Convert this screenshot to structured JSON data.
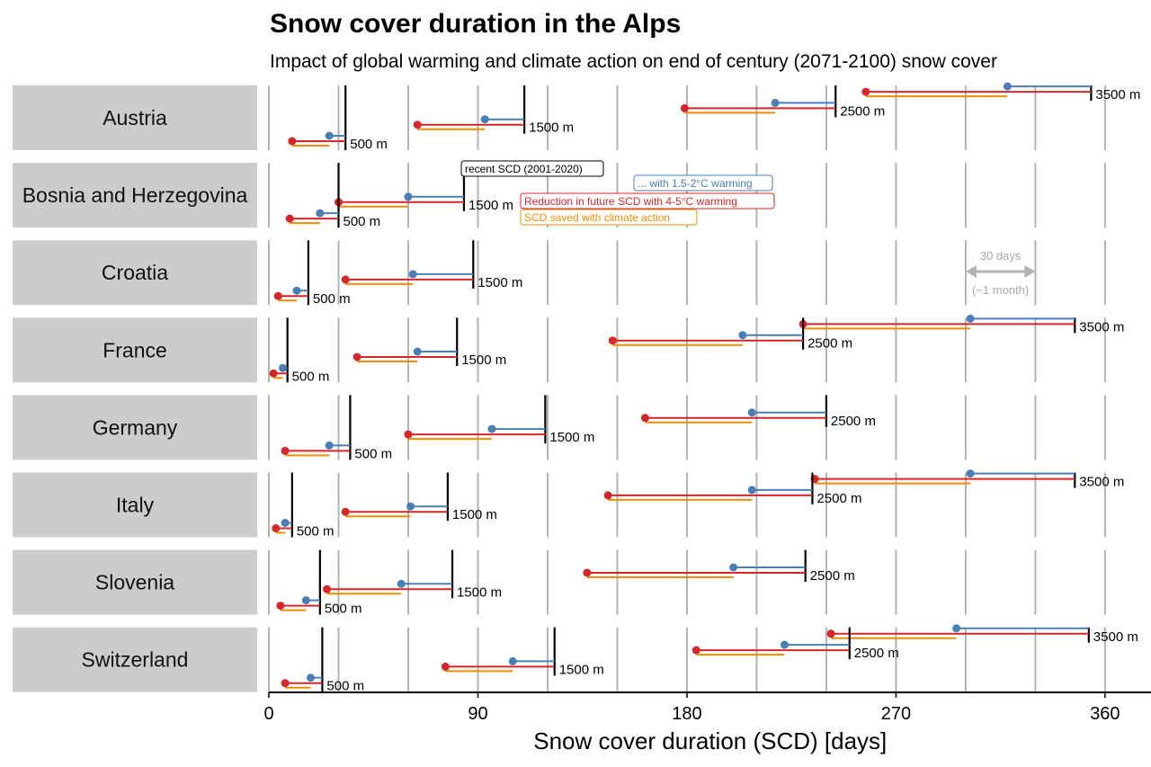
{
  "title": "Snow cover duration in the Alps",
  "subtitle": "Impact of global warming and climate action on end of century (2071-2100) snow cover",
  "colors": {
    "recent": "#000000",
    "mild": "#4a7fb5",
    "severe": "#d7262b",
    "saved": "#f08c00",
    "grid": "#b3b3b3",
    "strip": "#cccccc"
  },
  "legend": {
    "recent": "recent SCD (2001-2020)",
    "mild": "... with 1.5-2°C warming",
    "severe": "Reduction in future SCD with 4-5°C warming",
    "saved": "SCD saved with climate action"
  },
  "scale_annotation": {
    "label": "30 days",
    "sublabel": "(~1 month)",
    "days": 30,
    "start": 300
  },
  "chart_data": {
    "type": "dumbbell",
    "xlabel": "Snow cover duration (SCD) [days]",
    "xlim": [
      0,
      380
    ],
    "xticks": [
      0,
      90,
      180,
      270,
      360
    ],
    "grid_step": 30,
    "grid": true,
    "series_names": [
      "recent SCD (2001-2020)",
      "... with 1.5-2°C warming",
      "Reduction in future SCD with 4-5°C warming",
      "SCD saved with climate action"
    ],
    "panels": [
      {
        "country": "Austria",
        "rows": [
          {
            "elevation": "3500 m",
            "recent": 354,
            "mild": 318,
            "severe": 257
          },
          {
            "elevation": "2500 m",
            "recent": 244,
            "mild": 218,
            "severe": 179
          },
          {
            "elevation": "1500 m",
            "recent": 110,
            "mild": 93,
            "severe": 64
          },
          {
            "elevation": "500 m",
            "recent": 33,
            "mild": 26,
            "severe": 10
          }
        ]
      },
      {
        "country": "Bosnia and Herzegovina",
        "rows": [
          {
            "elevation": "1500 m",
            "recent": 84,
            "mild": 60,
            "severe": 30
          },
          {
            "elevation": "500 m",
            "recent": 30,
            "mild": 22,
            "severe": 9
          }
        ]
      },
      {
        "country": "Croatia",
        "rows": [
          {
            "elevation": "1500 m",
            "recent": 88,
            "mild": 62,
            "severe": 33
          },
          {
            "elevation": "500 m",
            "recent": 17,
            "mild": 12,
            "severe": 4
          }
        ]
      },
      {
        "country": "France",
        "rows": [
          {
            "elevation": "3500 m",
            "recent": 347,
            "mild": 302,
            "severe": 230
          },
          {
            "elevation": "2500 m",
            "recent": 230,
            "mild": 204,
            "severe": 148
          },
          {
            "elevation": "1500 m",
            "recent": 81,
            "mild": 64,
            "severe": 38
          },
          {
            "elevation": "500 m",
            "recent": 8,
            "mild": 6,
            "severe": 2
          }
        ]
      },
      {
        "country": "Germany",
        "rows": [
          {
            "elevation": "2500 m",
            "recent": 240,
            "mild": 208,
            "severe": 162
          },
          {
            "elevation": "1500 m",
            "recent": 119,
            "mild": 96,
            "severe": 60
          },
          {
            "elevation": "500 m",
            "recent": 35,
            "mild": 26,
            "severe": 7
          }
        ]
      },
      {
        "country": "Italy",
        "rows": [
          {
            "elevation": "3500 m",
            "recent": 347,
            "mild": 302,
            "severe": 235
          },
          {
            "elevation": "2500 m",
            "recent": 234,
            "mild": 208,
            "severe": 146
          },
          {
            "elevation": "1500 m",
            "recent": 77,
            "mild": 61,
            "severe": 33
          },
          {
            "elevation": "500 m",
            "recent": 10,
            "mild": 7,
            "severe": 3
          }
        ]
      },
      {
        "country": "Slovenia",
        "rows": [
          {
            "elevation": "2500 m",
            "recent": 231,
            "mild": 200,
            "severe": 137
          },
          {
            "elevation": "1500 m",
            "recent": 79,
            "mild": 57,
            "severe": 25
          },
          {
            "elevation": "500 m",
            "recent": 22,
            "mild": 16,
            "severe": 5
          }
        ]
      },
      {
        "country": "Switzerland",
        "rows": [
          {
            "elevation": "3500 m",
            "recent": 353,
            "mild": 296,
            "severe": 242
          },
          {
            "elevation": "2500 m",
            "recent": 250,
            "mild": 222,
            "severe": 184
          },
          {
            "elevation": "1500 m",
            "recent": 123,
            "mild": 105,
            "severe": 76
          },
          {
            "elevation": "500 m",
            "recent": 23,
            "mild": 18,
            "severe": 7
          }
        ]
      }
    ]
  }
}
